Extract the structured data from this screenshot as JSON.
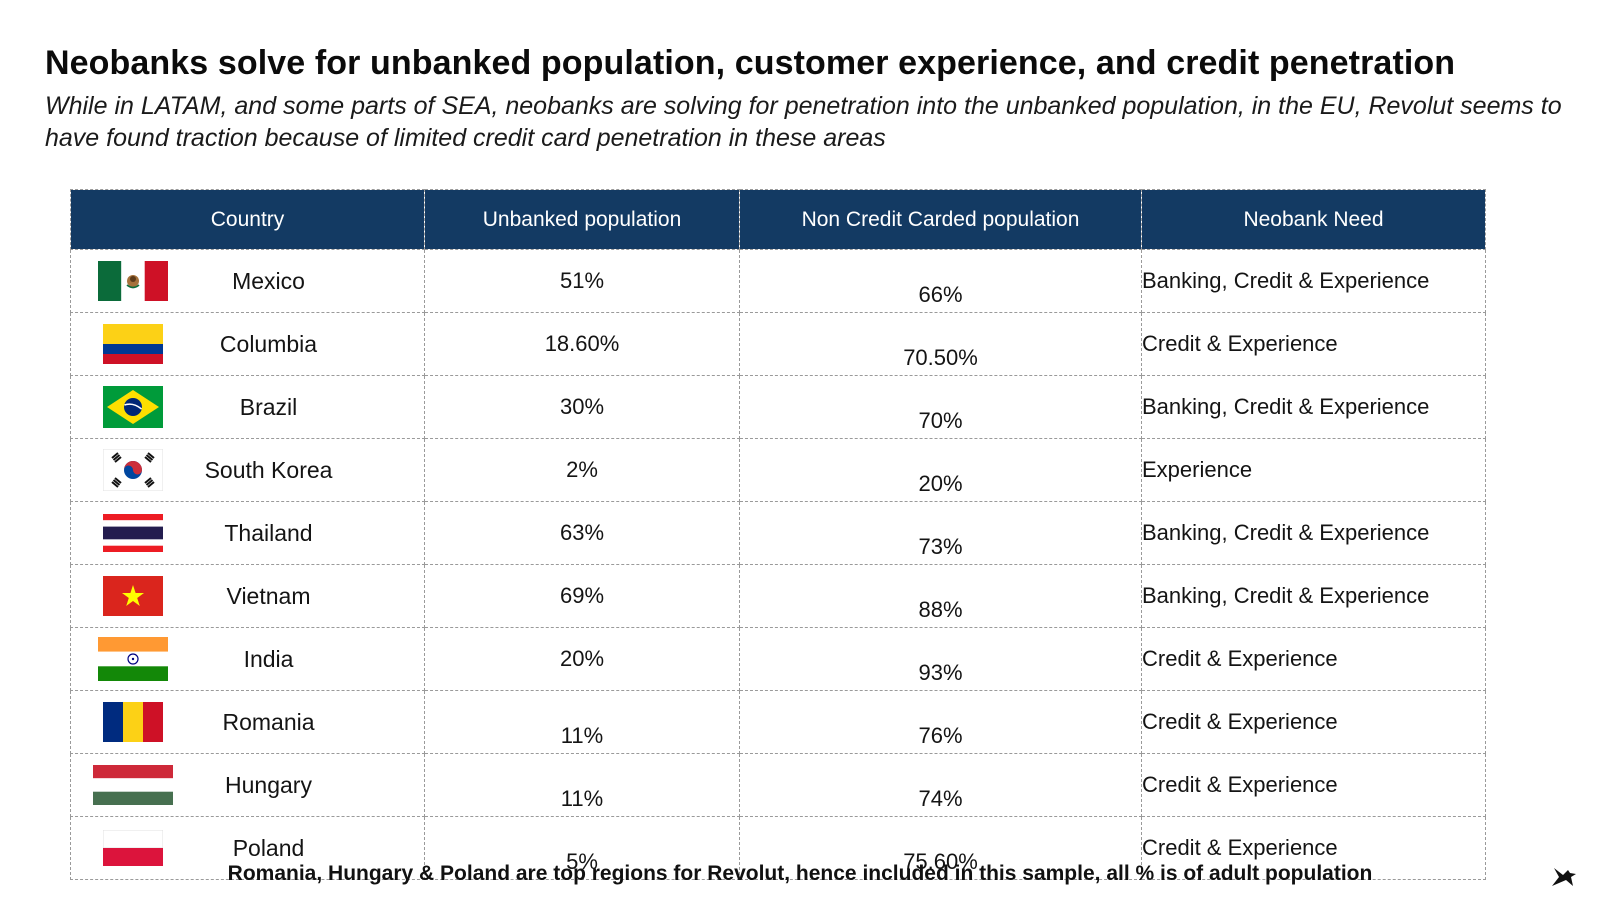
{
  "title": "Neobanks solve for unbanked population, customer experience, and credit penetration",
  "subtitle": "While in LATAM, and some parts of SEA, neobanks are solving for penetration into the unbanked population, in the EU, Revolut seems to have found traction because of limited credit card penetration in these areas",
  "table": {
    "headers": [
      "Country",
      "Unbanked population",
      "Non Credit Carded population",
      "Neobank Need"
    ],
    "rows": [
      {
        "flag": "mexico-flag-icon",
        "country": "Mexico",
        "unbanked": "51%",
        "non_credit_carded": "66%",
        "need": "Banking, Credit & Experience"
      },
      {
        "flag": "colombia-flag-icon",
        "country": "Columbia",
        "unbanked": "18.60%",
        "non_credit_carded": "70.50%",
        "need": "Credit & Experience"
      },
      {
        "flag": "brazil-flag-icon",
        "country": "Brazil",
        "unbanked": "30%",
        "non_credit_carded": "70%",
        "need": "Banking, Credit & Experience"
      },
      {
        "flag": "south-korea-flag-icon",
        "country": "South Korea",
        "unbanked": "2%",
        "non_credit_carded": "20%",
        "need": "Experience"
      },
      {
        "flag": "thailand-flag-icon",
        "country": "Thailand",
        "unbanked": "63%",
        "non_credit_carded": "73%",
        "need": "Banking, Credit & Experience"
      },
      {
        "flag": "vietnam-flag-icon",
        "country": "Vietnam",
        "unbanked": "69%",
        "non_credit_carded": "88%",
        "need": "Banking, Credit & Experience"
      },
      {
        "flag": "india-flag-icon",
        "country": "India",
        "unbanked": "20%",
        "non_credit_carded": "93%",
        "need": "Credit & Experience"
      },
      {
        "flag": "romania-flag-icon",
        "country": "Romania",
        "unbanked": "11%",
        "non_credit_carded": "76%",
        "need": "Credit & Experience"
      },
      {
        "flag": "hungary-flag-icon",
        "country": "Hungary",
        "unbanked": "11%",
        "non_credit_carded": "74%",
        "need": "Credit & Experience"
      },
      {
        "flag": "poland-flag-icon",
        "country": "Poland",
        "unbanked": "5%",
        "non_credit_carded": "75.60%",
        "need": "Credit & Experience"
      }
    ]
  },
  "footnote": "Romania, Hungary & Poland are top regions for Revolut, hence included in this sample, all % is of adult population",
  "logo_icon": "bird-logo-icon",
  "colors": {
    "header_bg": "#133a63",
    "header_text": "#ffffff"
  }
}
